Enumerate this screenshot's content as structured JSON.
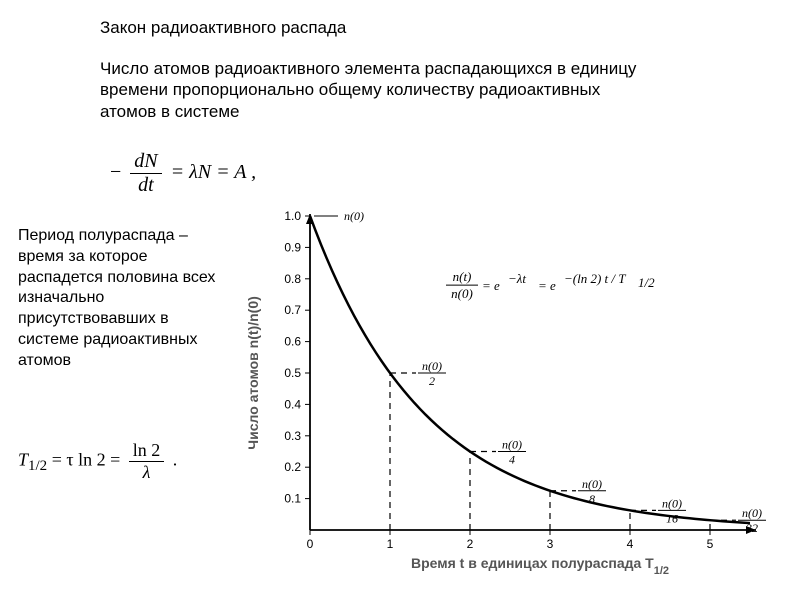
{
  "title": "Закон радиоактивного распада",
  "subtitle": "Число атомов радиоактивного элемента распадающихся в единицу времени пропорционально общему количеству радиоактивных атомов в системе",
  "formula_main": {
    "minus": "−",
    "num": "dN",
    "den": "dt",
    "rhs": " = λN = A ,"
  },
  "side_text": "Период полураспада – время за которое распадется половина всех изначально присутствовавших в системе радиоактивных атомов",
  "formula_half": {
    "lhs": "T",
    "sub": "1/2",
    "mid": " = τ ln 2 = ",
    "num": "ln 2",
    "den": "λ",
    "tail": " ."
  },
  "chart": {
    "type": "line",
    "background_color": "#ffffff",
    "axis_color": "#000000",
    "curve_color": "#000000",
    "curve_width": 2.5,
    "dash_pattern": "6,5",
    "dash_width": 1.2,
    "xlim": [
      0,
      5.5
    ],
    "ylim": [
      0,
      1.0
    ],
    "xticks": [
      0,
      1,
      2,
      3,
      4,
      5
    ],
    "yticks": [
      0.1,
      0.2,
      0.3,
      0.4,
      0.5,
      0.6,
      0.7,
      0.8,
      0.9,
      1.0
    ],
    "xtick_labels": [
      "0",
      "1",
      "2",
      "3",
      "4",
      "5"
    ],
    "ytick_labels": [
      "0.1",
      "0.2",
      "0.3",
      "0.4",
      "0.5",
      "0.6",
      "0.7",
      "0.8",
      "0.9",
      "1.0"
    ],
    "ylabel": "Число атомов n(t)/n(0)",
    "xlabel_pre": "Время t в единицах полураспада T",
    "xlabel_sub": "1/2",
    "tick_fontsize": 12,
    "label_fontsize": 14,
    "label_color": "#555555",
    "n0_label": "n(0)",
    "equation_parts": {
      "lhs_num": "n(t)",
      "lhs_den": "n(0)",
      "rhs1": " = e",
      "exp1": "−λt",
      "rhs2": " = e",
      "exp2": "−(ln 2) t / T",
      "exp2_sub": "1/2"
    },
    "half_markers": [
      {
        "x": 1,
        "y": 0.5,
        "num": "n(0)",
        "den": "2"
      },
      {
        "x": 2,
        "y": 0.25,
        "num": "n(0)",
        "den": "4"
      },
      {
        "x": 3,
        "y": 0.125,
        "num": "n(0)",
        "den": "8"
      },
      {
        "x": 4,
        "y": 0.0625,
        "num": "n(0)",
        "den": "16"
      },
      {
        "x": 5,
        "y": 0.03125,
        "num": "n(0)",
        "den": "32"
      }
    ],
    "curve_samples": 80
  }
}
